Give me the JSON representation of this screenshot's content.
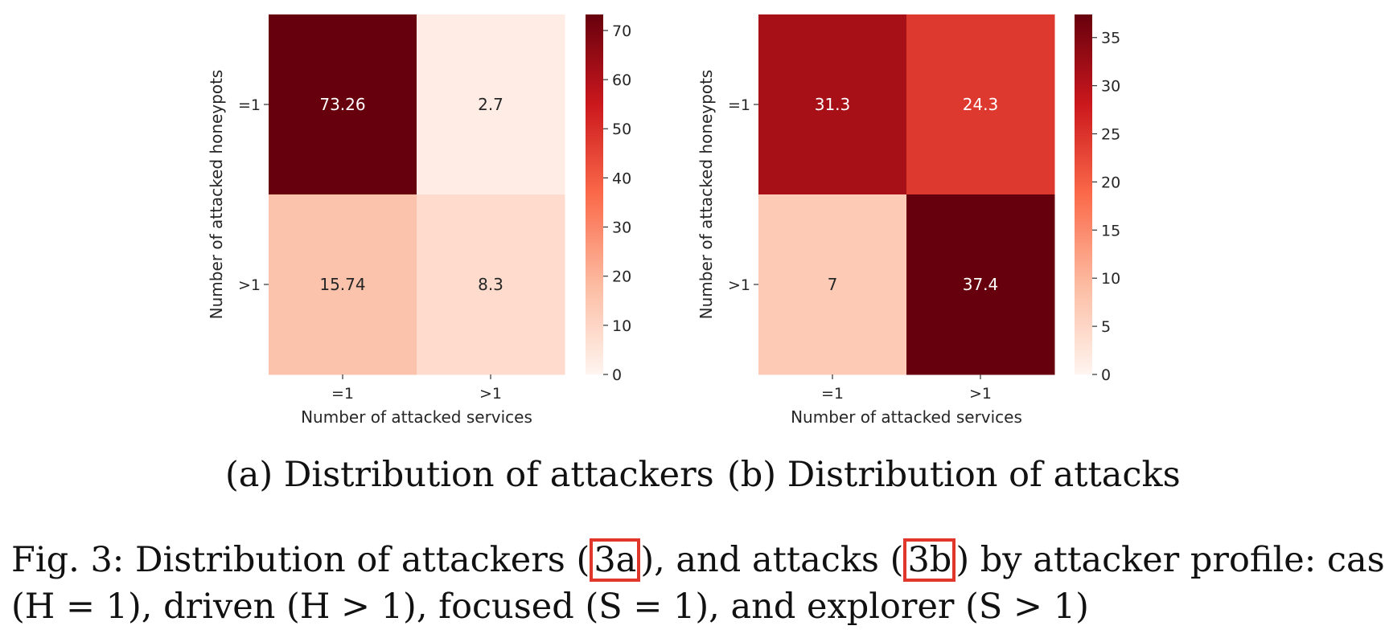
{
  "chart_data": [
    {
      "type": "heatmap",
      "rows": [
        "=1",
        ">1"
      ],
      "cols": [
        "=1",
        ">1"
      ],
      "values": [
        [
          73.26,
          2.7
        ],
        [
          15.74,
          8.3
        ]
      ],
      "cell_labels": [
        [
          "73.26",
          "2.7"
        ],
        [
          "15.74",
          "8.3"
        ]
      ],
      "xlabel": "Number of attacked services",
      "ylabel": "Number of attacked honeypots",
      "colorbar": {
        "min": 0,
        "max": 73.26,
        "ticks": [
          0,
          10,
          20,
          30,
          40,
          50,
          60,
          70
        ]
      },
      "colormap": [
        "#fff5f0",
        "#fcbba1",
        "#fb6a4a",
        "#cb181d",
        "#67000d"
      ]
    },
    {
      "type": "heatmap",
      "rows": [
        "=1",
        ">1"
      ],
      "cols": [
        "=1",
        ">1"
      ],
      "values": [
        [
          31.3,
          24.3
        ],
        [
          7,
          37.4
        ]
      ],
      "cell_labels": [
        [
          "31.3",
          "24.3"
        ],
        [
          "7",
          "37.4"
        ]
      ],
      "xlabel": "Number of attacked services",
      "ylabel": "Number of attacked honeypots",
      "colorbar": {
        "min": 0,
        "max": 37.4,
        "ticks": [
          0,
          5,
          10,
          15,
          20,
          25,
          30,
          35
        ]
      },
      "colormap": [
        "#fff5f0",
        "#fcbba1",
        "#fb6a4a",
        "#cb181d",
        "#67000d"
      ]
    }
  ],
  "subcaptions": {
    "a": "(a) Distribution of attackers",
    "b": "(b) Distribution of attacks"
  },
  "caption": {
    "line1_prefix": "Fig. 3: Distribution of attackers (",
    "ref_a": "3a",
    "line1_mid": "), and attacks (",
    "ref_b": "3b",
    "line1_suffix": ") by attacker profile: casual",
    "line2": "(H = 1), driven (H > 1), focused (S = 1), and explorer (S > 1)"
  }
}
